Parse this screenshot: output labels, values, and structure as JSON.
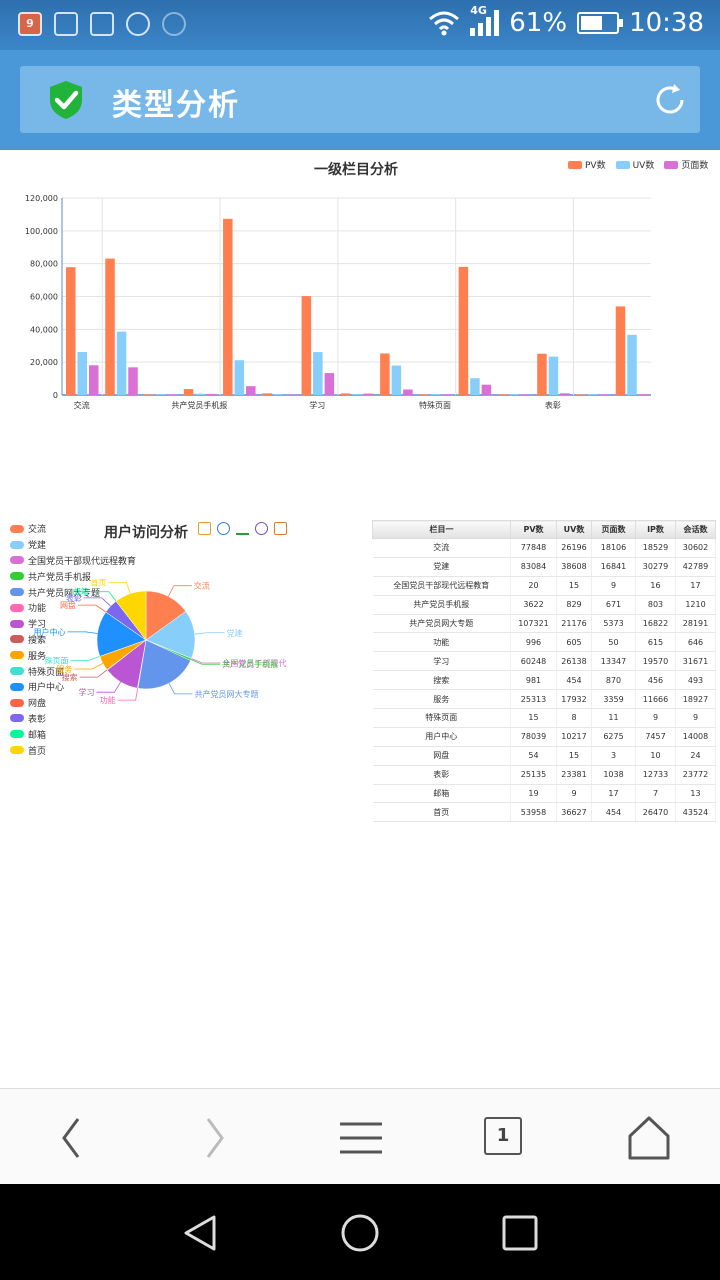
{
  "status_bar": {
    "network": "4G",
    "battery": "61%",
    "battery_level": 0.61,
    "time": "10:38",
    "calendar_day": "9"
  },
  "header": {
    "title": "类型分析"
  },
  "bar_chart_title": "一级栏目分析",
  "pie_chart_title": "用户访问分析",
  "colors": {
    "pv": "#ff7f50",
    "uv": "#87cefa",
    "pages": "#da70d6"
  },
  "chart_data": [
    {
      "type": "bar",
      "title": "一级栏目分析",
      "categories": [
        "交流",
        "党建",
        "全国党员干部现代远程教育",
        "共产党员手机报",
        "共产党员网大专题",
        "功能",
        "学习",
        "搜索",
        "服务",
        "特殊页面",
        "用户中心",
        "网盘",
        "表彰",
        "邮箱",
        "首页"
      ],
      "x_tick_labels": [
        "交流",
        "共产党员手机报",
        "学习",
        "特殊页面",
        "表彰"
      ],
      "y_ticks": [
        "0",
        "20,000",
        "40,000",
        "60,000",
        "80,000",
        "100,000",
        "120,000"
      ],
      "ylim": [
        0,
        120000
      ],
      "legend_position": "top-right",
      "series": [
        {
          "name": "PV数",
          "values": [
            77848,
            83084,
            20,
            3622,
            107321,
            996,
            60248,
            981,
            25313,
            15,
            78039,
            54,
            25135,
            19,
            53958
          ]
        },
        {
          "name": "UV数",
          "values": [
            26196,
            38608,
            15,
            829,
            21176,
            605,
            26138,
            454,
            17932,
            8,
            10217,
            15,
            23381,
            9,
            36627
          ]
        },
        {
          "name": "页面数",
          "values": [
            18106,
            16841,
            9,
            671,
            5373,
            50,
            13347,
            870,
            3359,
            11,
            6275,
            3,
            1038,
            17,
            454
          ]
        }
      ]
    },
    {
      "type": "pie",
      "title": "用户访问分析",
      "legend_position": "left",
      "labels": [
        "交流",
        "党建",
        "全国党员干部现代远程教育",
        "共产党员手机报",
        "共产党员网大专题",
        "功能",
        "学习",
        "搜索",
        "服务",
        "特殊页面",
        "用户中心",
        "网盘",
        "表彰",
        "邮箱",
        "首页"
      ],
      "slice_labels": [
        "交流",
        "党建",
        "全国党员干部现代",
        "共产党员手机报",
        "共产党员网大专题",
        "功能",
        "学习",
        "搜索",
        "服务",
        "殊页面",
        "用户中心",
        "网盘",
        "表彰",
        "邮箱",
        "首页"
      ],
      "values": [
        77848,
        83084,
        20,
        3622,
        107321,
        996,
        60248,
        981,
        25313,
        15,
        78039,
        54,
        25135,
        19,
        53958
      ],
      "colors": [
        "#ff7f50",
        "#87cefa",
        "#da70d6",
        "#32cd32",
        "#6495ed",
        "#ff69b4",
        "#ba55d3",
        "#cd5c5c",
        "#ffa500",
        "#40e0d0",
        "#1e90ff",
        "#ff6347",
        "#7b68ee",
        "#00fa9a",
        "#ffd700"
      ]
    }
  ],
  "table": {
    "headers": [
      "栏目一",
      "PV数",
      "UV数",
      "页面数",
      "IP数",
      "会话数"
    ],
    "rows": [
      [
        "交流",
        "77848",
        "26196",
        "18106",
        "18529",
        "30602"
      ],
      [
        "党建",
        "83084",
        "38608",
        "16841",
        "30279",
        "42789"
      ],
      [
        "全国党员干部现代远程教育",
        "20",
        "15",
        "9",
        "16",
        "17"
      ],
      [
        "共产党员手机报",
        "3622",
        "829",
        "671",
        "803",
        "1210"
      ],
      [
        "共产党员网大专题",
        "107321",
        "21176",
        "5373",
        "16822",
        "28191"
      ],
      [
        "功能",
        "996",
        "605",
        "50",
        "615",
        "646"
      ],
      [
        "学习",
        "60248",
        "26138",
        "13347",
        "19570",
        "31671"
      ],
      [
        "搜索",
        "981",
        "454",
        "870",
        "456",
        "493"
      ],
      [
        "服务",
        "25313",
        "17932",
        "3359",
        "11666",
        "18927"
      ],
      [
        "特殊页面",
        "15",
        "8",
        "11",
        "9",
        "9"
      ],
      [
        "用户中心",
        "78039",
        "10217",
        "6275",
        "7457",
        "14008"
      ],
      [
        "网盘",
        "54",
        "15",
        "3",
        "10",
        "24"
      ],
      [
        "表彰",
        "25135",
        "23381",
        "1038",
        "12733",
        "23772"
      ],
      [
        "邮箱",
        "19",
        "9",
        "17",
        "7",
        "13"
      ],
      [
        "首页",
        "53958",
        "36627",
        "454",
        "26470",
        "43524"
      ]
    ]
  },
  "browser_bar": {
    "tab_count": "1"
  },
  "icons": [
    "calendar-icon",
    "gallery-icon",
    "keyboard-icon",
    "blocked-icon",
    "wifi-question-icon",
    "wifi-icon",
    "signal-icon",
    "battery-icon",
    "shield-check-icon",
    "refresh-icon",
    "data-view-icon",
    "pie-switch-icon",
    "funnel-icon",
    "restore-icon",
    "save-image-icon",
    "back-icon",
    "forward-icon",
    "menu-icon",
    "tabs-icon",
    "home-icon",
    "nav-back-icon",
    "nav-home-icon",
    "nav-recent-icon"
  ]
}
